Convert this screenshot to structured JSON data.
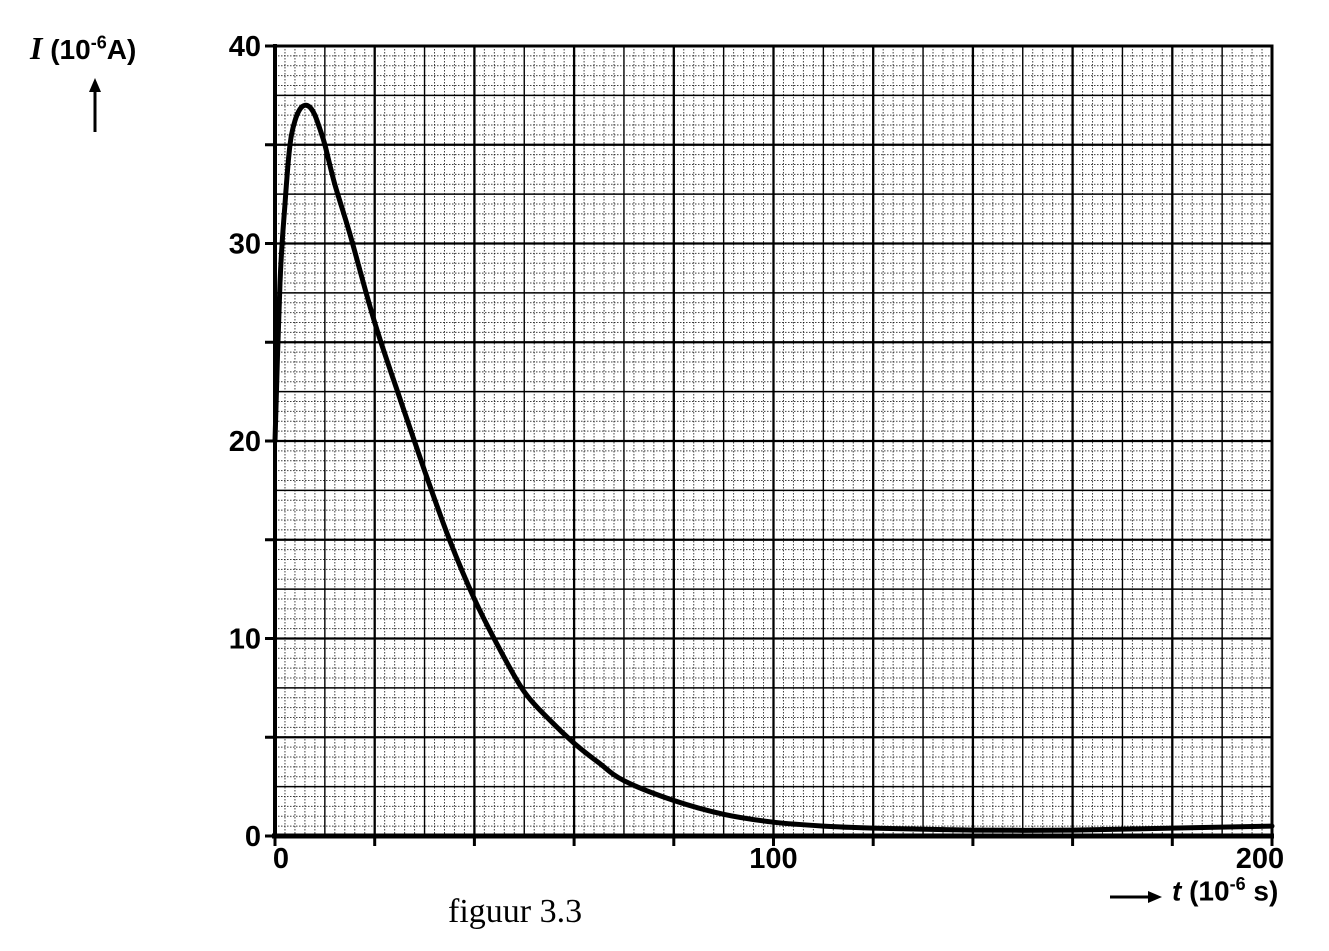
{
  "chart_data": {
    "type": "line",
    "title": "",
    "caption": "figuur 3.3",
    "ylabel": {
      "symbol": "I",
      "prefix": " (10",
      "exp": "-6",
      "suffix": "A)"
    },
    "xlabel": {
      "symbol": "t",
      "prefix": " (10",
      "exp": "-6",
      "suffix": " s)"
    },
    "xlim": [
      0,
      200
    ],
    "ylim": [
      0,
      40
    ],
    "x_ticks": [
      0,
      100,
      200
    ],
    "y_ticks": [
      0,
      10,
      20,
      30,
      40
    ],
    "x_tick_labels": [
      "0",
      "100",
      "200"
    ],
    "y_tick_labels": [
      "0",
      "10",
      "20",
      "30",
      "40"
    ],
    "grid": true,
    "series": [
      {
        "x": [
          0,
          1,
          2,
          3,
          4,
          5,
          6,
          7,
          8,
          9,
          10,
          12,
          15,
          20,
          25,
          30,
          35,
          40,
          45,
          50,
          55,
          60,
          65,
          70,
          80,
          90,
          100,
          110,
          120,
          140,
          160,
          180,
          200
        ],
        "y": [
          20,
          28,
          32,
          35,
          36.2,
          36.8,
          37,
          36.9,
          36.5,
          35.8,
          35,
          33,
          30.5,
          26,
          22.2,
          18.5,
          15,
          12,
          9.5,
          7.3,
          5.9,
          4.7,
          3.7,
          2.8,
          1.8,
          1.1,
          0.7,
          0.5,
          0.4,
          0.3,
          0.3,
          0.4,
          0.5
        ]
      }
    ]
  }
}
